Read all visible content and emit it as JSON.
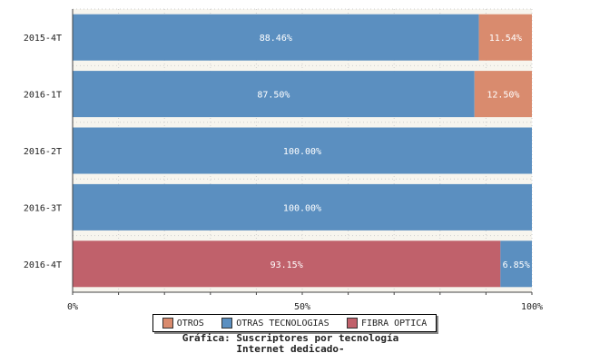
{
  "chart_data": {
    "type": "bar",
    "orientation": "horizontal",
    "stacked": true,
    "categories": [
      "2015-4T",
      "2016-1T",
      "2016-2T",
      "2016-3T",
      "2016-4T"
    ],
    "series": [
      {
        "name": "FIBRA OPTICA",
        "color": "#c0616b",
        "values": [
          0,
          0,
          0,
          0,
          93.15
        ],
        "labels": [
          "",
          "",
          "",
          "",
          "93.15%"
        ]
      },
      {
        "name": "OTRAS TECNOLOGIAS",
        "color": "#5b8fc0",
        "values": [
          88.46,
          87.5,
          100.0,
          100.0,
          6.85
        ],
        "labels": [
          "88.46%",
          "87.50%",
          "100.00%",
          "100.00%",
          "6.85%"
        ]
      },
      {
        "name": "OTROS",
        "color": "#d98b6e",
        "values": [
          11.54,
          12.5,
          0,
          0,
          0
        ],
        "labels": [
          "11.54%",
          "12.50%",
          "",
          "",
          ""
        ]
      }
    ],
    "x_ticks": [
      "0%",
      "50%",
      "100%"
    ],
    "xlim": [
      0,
      100
    ],
    "grid": true,
    "legend_position": "bottom"
  },
  "legend": [
    {
      "label": "OTROS",
      "color": "#d98b6e"
    },
    {
      "label": "OTRAS TECNOLOGIAS",
      "color": "#5b8fc0"
    },
    {
      "label": "FIBRA OPTICA",
      "color": "#c0616b"
    }
  ],
  "caption": {
    "line1": "Gráfica: Suscriptores por tecnología",
    "line2": "Internet dedicado-"
  }
}
